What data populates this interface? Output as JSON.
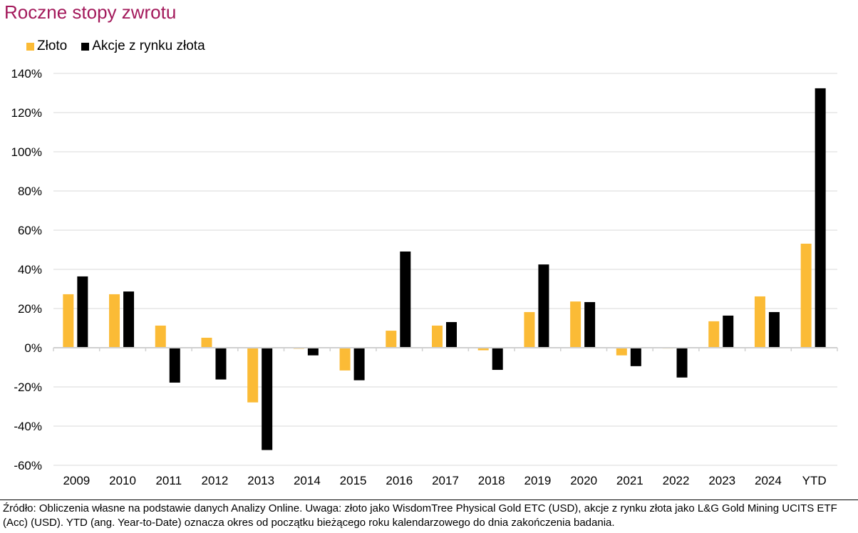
{
  "chart_data": {
    "type": "bar",
    "title": "Roczne stopy zwrotu",
    "xlabel": "",
    "ylabel": "",
    "ylim": [
      -60,
      140
    ],
    "yticks": [
      140,
      120,
      100,
      80,
      60,
      40,
      20,
      0,
      -20,
      -40,
      -60
    ],
    "ytick_labels": [
      "140%",
      "120%",
      "100%",
      "80%",
      "60%",
      "40%",
      "20%",
      "0%",
      "-20%",
      "-40%",
      "-60%"
    ],
    "grid": true,
    "legend_position": "top-left",
    "categories": [
      "2009",
      "2010",
      "2011",
      "2012",
      "2013",
      "2014",
      "2015",
      "2016",
      "2017",
      "2018",
      "2019",
      "2020",
      "2021",
      "2022",
      "2023",
      "2024",
      "YTD"
    ],
    "series": [
      {
        "name": "Złoto",
        "color": "#fbbb36",
        "values": [
          27.3,
          27.3,
          11.3,
          5.1,
          -27.9,
          -0.5,
          -11.6,
          8.7,
          11.3,
          -1.3,
          18.2,
          23.6,
          -3.9,
          -0.4,
          13.5,
          26.2,
          53.1
        ]
      },
      {
        "name": "Akcje z rynku złota",
        "color": "#000000",
        "values": [
          36.4,
          28.7,
          -17.8,
          -16.2,
          -52.2,
          -3.9,
          -16.6,
          49.1,
          13.1,
          -11.3,
          42.5,
          23.3,
          -9.4,
          -15.2,
          16.4,
          18.2,
          132.4
        ]
      }
    ]
  },
  "footer": {
    "note": "Źródło: Obliczenia własne na podstawie danych Analizy Online. Uwaga: złoto jako WisdomTree Physical Gold ETC (USD), akcje z rynku złota jako L&G Gold Mining UCITS ETF (Acc) (USD). YTD (ang. Year-to-Date) oznacza okres od początku bieżącego roku kalendarzowego do dnia zakończenia badania."
  }
}
